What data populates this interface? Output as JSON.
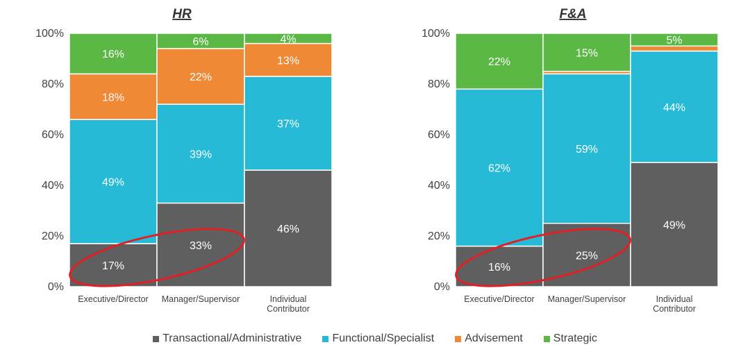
{
  "colors": {
    "transactional": "#5f5f60",
    "functional": "#26bad7",
    "advisement": "#ef8936",
    "strategic": "#5bb845",
    "highlight": "#e11f24"
  },
  "legend": [
    {
      "label": "Transactional/Administrative",
      "color": "#5f5f60"
    },
    {
      "label": "Functional/Specialist",
      "color": "#26bad7"
    },
    {
      "label": "Advisement",
      "color": "#ef8936"
    },
    {
      "label": "Strategic",
      "color": "#5bb845"
    }
  ],
  "chart_data": [
    {
      "type": "bar",
      "stacked": true,
      "title": "HR",
      "categories": [
        "Executive/Director",
        "Manager/Supervisor",
        "Individual Contributor"
      ],
      "category_lines": [
        [
          "Executive/Director"
        ],
        [
          "Manager/Supervisor"
        ],
        [
          "Individual",
          "Contributor"
        ]
      ],
      "ylim": [
        0,
        100
      ],
      "yticks": [
        "0%",
        "20%",
        "40%",
        "60%",
        "80%",
        "100%"
      ],
      "series": [
        {
          "name": "Transactional/Administrative",
          "color": "#5f5f60",
          "values": [
            17,
            33,
            46
          ],
          "labels": [
            "17%",
            "33%",
            "46%"
          ]
        },
        {
          "name": "Functional/Specialist",
          "color": "#26bad7",
          "values": [
            49,
            39,
            37
          ],
          "labels": [
            "49%",
            "39%",
            "37%"
          ]
        },
        {
          "name": "Advisement",
          "color": "#ef8936",
          "values": [
            18,
            22,
            13
          ],
          "labels": [
            "18%",
            "22%",
            "13%"
          ]
        },
        {
          "name": "Strategic",
          "color": "#5bb845",
          "values": [
            16,
            6,
            4
          ],
          "labels": [
            "16%",
            "6%",
            "4%"
          ]
        }
      ],
      "highlight": "ellipse around Transactional/Administrative of Executive/Director and Manager/Supervisor"
    },
    {
      "type": "bar",
      "stacked": true,
      "title": "F&A",
      "categories": [
        "Executive/Director",
        "Manager/Supervisor",
        "Individual Contributor"
      ],
      "category_lines": [
        [
          "Executive/Director"
        ],
        [
          "Manager/Supervisor"
        ],
        [
          "Individual",
          "Contributor"
        ]
      ],
      "ylim": [
        0,
        100
      ],
      "yticks": [
        "0%",
        "20%",
        "40%",
        "60%",
        "80%",
        "100%"
      ],
      "series": [
        {
          "name": "Transactional/Administrative",
          "color": "#5f5f60",
          "values": [
            16,
            25,
            49
          ],
          "labels": [
            "16%",
            "25%",
            "49%"
          ]
        },
        {
          "name": "Functional/Specialist",
          "color": "#26bad7",
          "values": [
            62,
            59,
            44
          ],
          "labels": [
            "62%",
            "59%",
            "44%"
          ]
        },
        {
          "name": "Advisement",
          "color": "#ef8936",
          "values": [
            0,
            1,
            2
          ],
          "labels": [
            "",
            "",
            ""
          ]
        },
        {
          "name": "Strategic",
          "color": "#5bb845",
          "values": [
            22,
            15,
            5
          ],
          "labels": [
            "22%",
            "15%",
            "5%"
          ]
        }
      ],
      "highlight": "ellipse around Transactional/Administrative of Executive/Director and Manager/Supervisor"
    }
  ]
}
